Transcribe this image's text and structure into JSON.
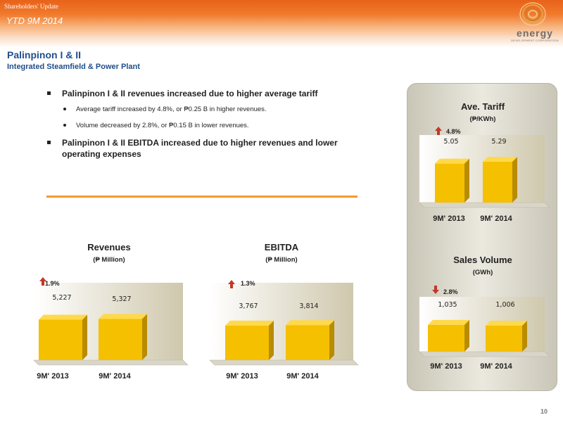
{
  "header": {
    "doc_label": "Shareholders' Update",
    "period": "YTD 9M 2014",
    "logo_word": "energy",
    "logo_sub": "DEVELOPMENT CORPORATION"
  },
  "titles": {
    "main": "Palinpinon I & II",
    "sub": "Integrated Steamfield & Power Plant"
  },
  "bullets": [
    {
      "level": 1,
      "text": "Palinpinon I & II revenues increased due to higher average tariff"
    },
    {
      "level": 2,
      "text": "Average tariff increased by 4.8%, or ₱0.25 B in higher revenues."
    },
    {
      "level": 2,
      "text": "Volume decreased by 2.8%, or ₱0.15 B in lower revenues."
    },
    {
      "level": 1,
      "text": "Palinpinon I & II EBITDA increased due to higher revenues and lower operating expenses"
    }
  ],
  "colors": {
    "bar": "#f5c000",
    "bar_side": "#b98c00",
    "bar_top": "#ffd94a",
    "arrow": "#c0392b",
    "accent": "#f39a2e",
    "title_blue": "#1f4e8c"
  },
  "chart_data": [
    {
      "id": "revenues",
      "type": "bar",
      "title": "Revenues",
      "unit": "(₱ Million)",
      "categories": [
        "9M' 2013",
        "9M' 2014"
      ],
      "values": [
        5227,
        5327
      ],
      "value_labels": [
        "5,227",
        "5,327"
      ],
      "change": {
        "direction": "up",
        "label": "1.9%"
      },
      "ylim": [
        0,
        6000
      ]
    },
    {
      "id": "ebitda",
      "type": "bar",
      "title": "EBITDA",
      "unit": "(₱ Million)",
      "categories": [
        "9M' 2013",
        "9M' 2014"
      ],
      "values": [
        3767,
        3814
      ],
      "value_labels": [
        "3,767",
        "3,814"
      ],
      "change": {
        "direction": "up",
        "label": "1.3%"
      },
      "ylim": [
        0,
        4600
      ]
    },
    {
      "id": "ave-tariff",
      "type": "bar",
      "title": "Ave. Tariff",
      "unit": "(₱/KWh)",
      "categories": [
        "9M' 2013",
        "9M' 2014"
      ],
      "values": [
        5.05,
        5.29
      ],
      "value_labels": [
        "5.05",
        "5.29"
      ],
      "change": {
        "direction": "up",
        "label": "4.8%"
      },
      "ylim": [
        0,
        6.2
      ]
    },
    {
      "id": "sales-volume",
      "type": "bar",
      "title": "Sales Volume",
      "unit": "(GWh)",
      "categories": [
        "9M' 2013",
        "9M' 2014"
      ],
      "values": [
        1035,
        1006
      ],
      "value_labels": [
        "1,035",
        "1,006"
      ],
      "change": {
        "direction": "down",
        "label": "2.8%"
      },
      "ylim": [
        0,
        1250
      ]
    }
  ],
  "page_number": "10"
}
